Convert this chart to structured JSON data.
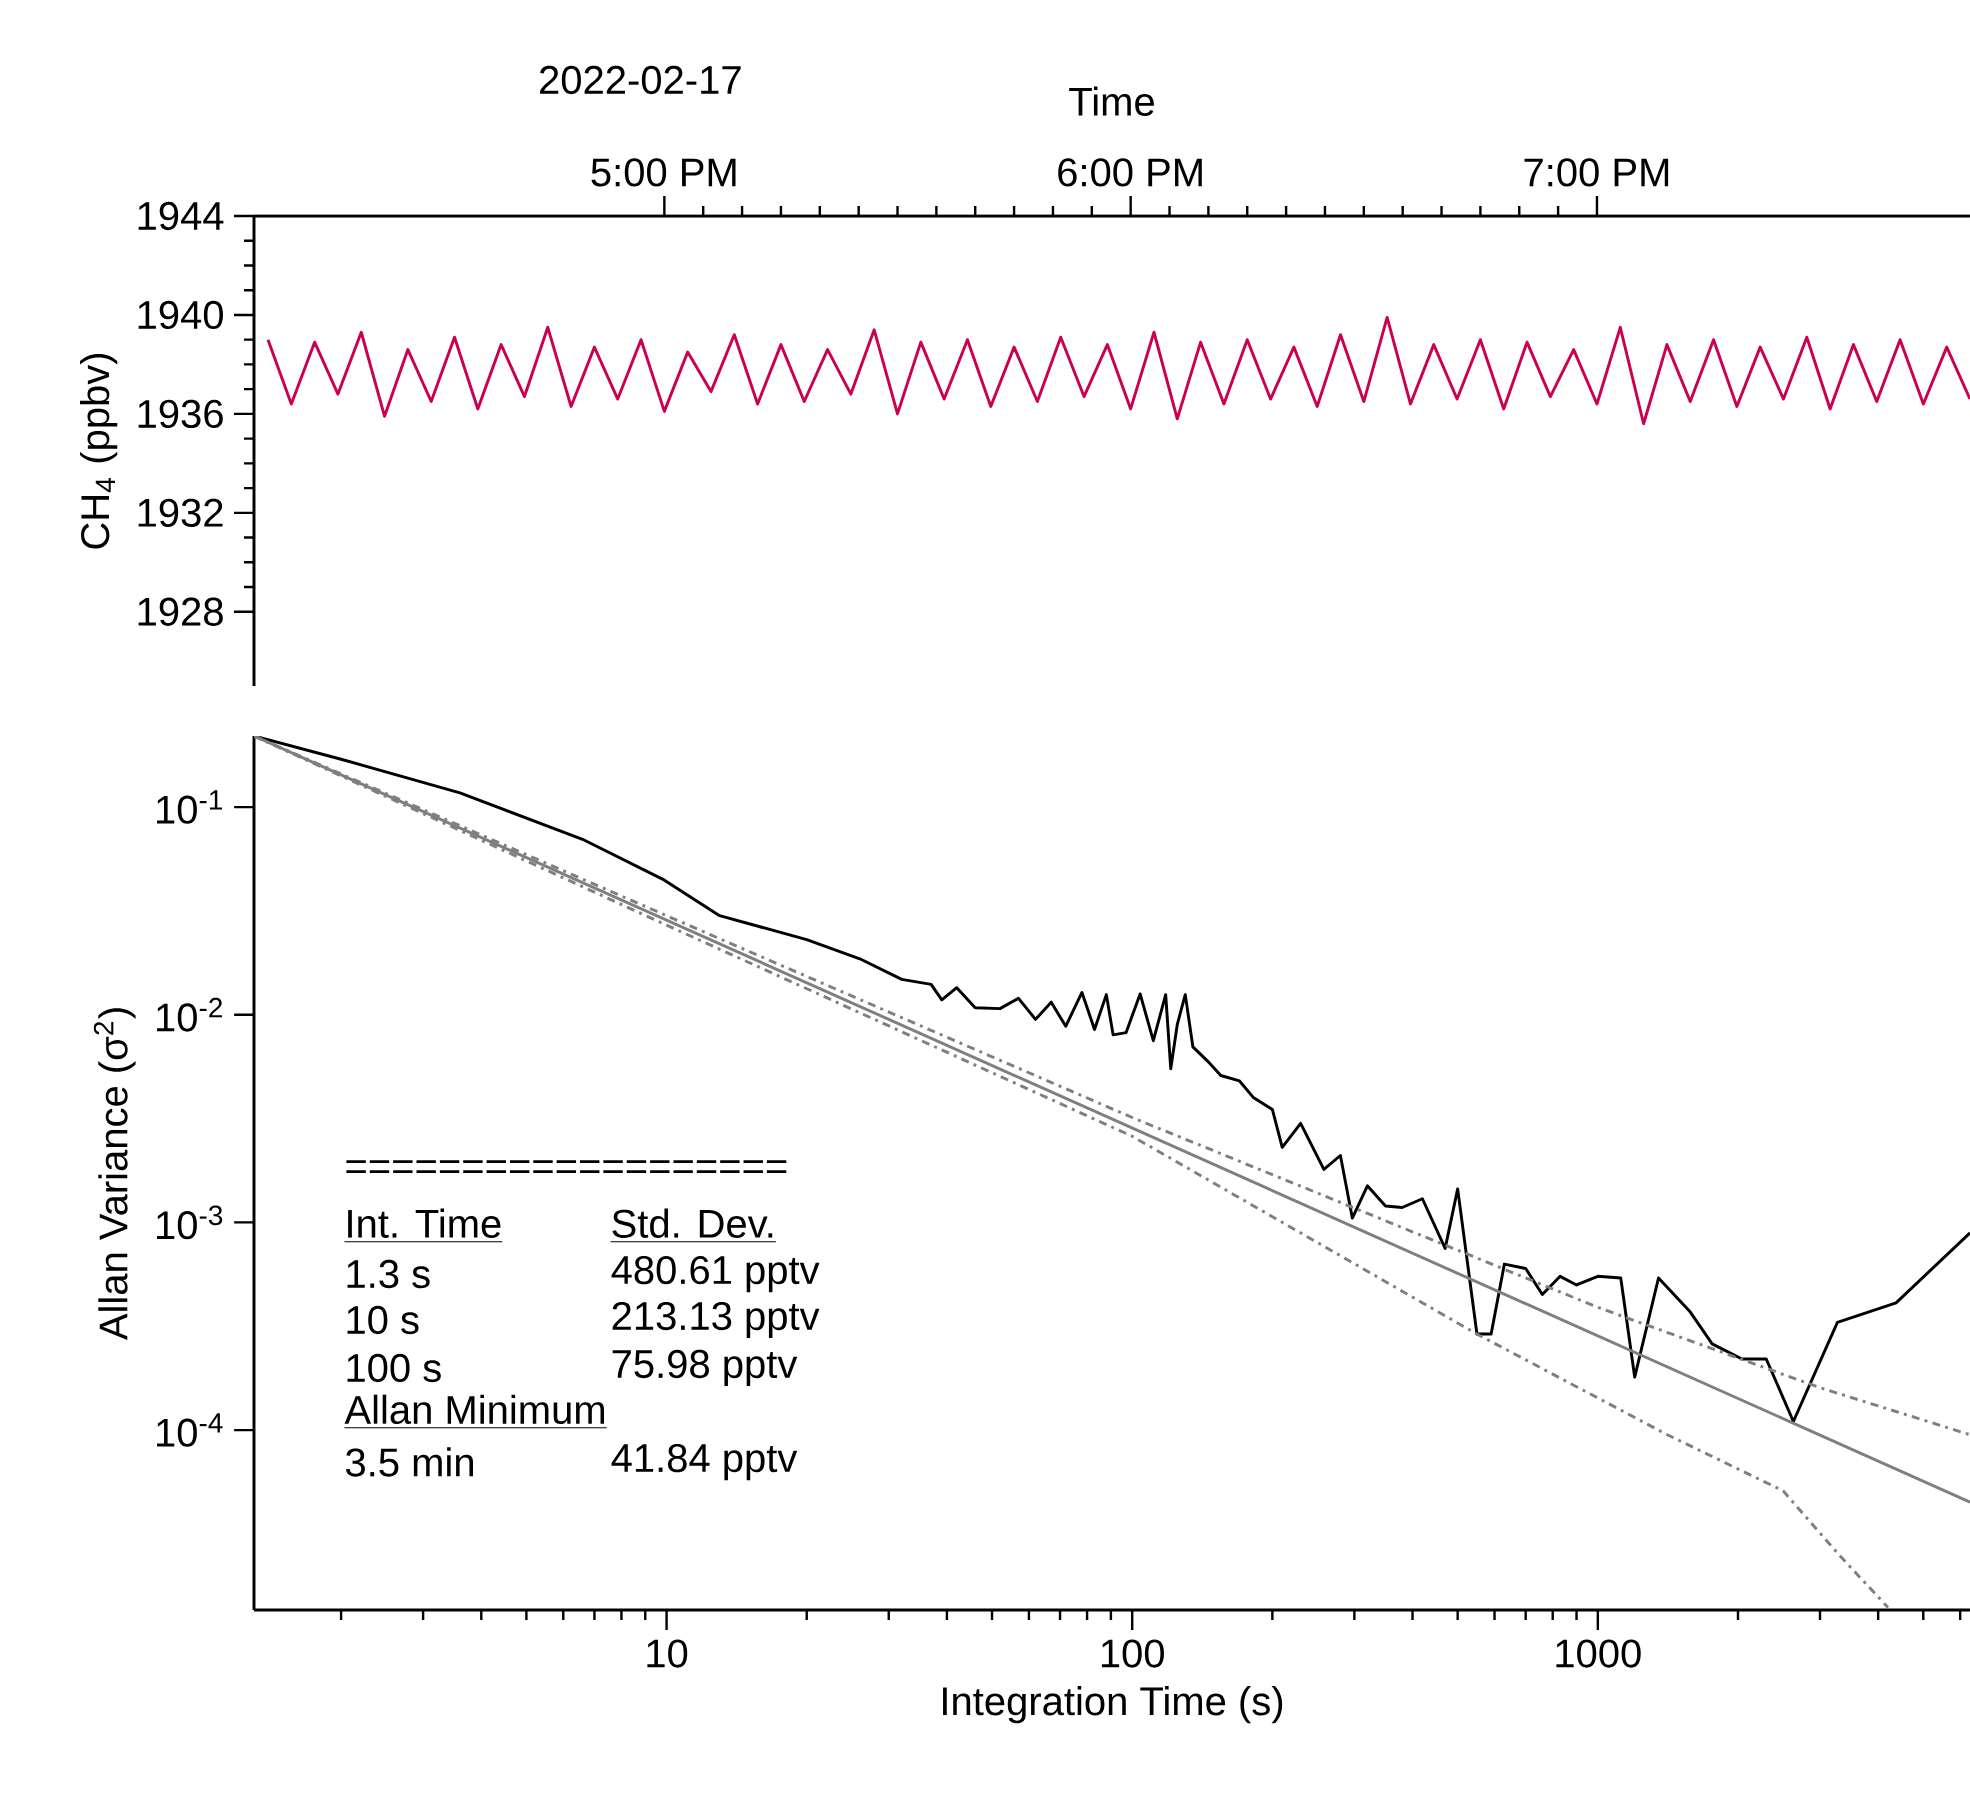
{
  "chart_data": [
    {
      "type": "line",
      "xlabel": "Time",
      "ylabel": "CH$_{4}$ (ppbv)",
      "xlim": [
        16.12,
        19.8
      ],
      "xticks": [
        {
          "value": 17,
          "label": "5:00 PM"
        },
        {
          "value": 18,
          "label": "6:00 PM"
        },
        {
          "value": 19,
          "label": "7:00 PM"
        }
      ],
      "ylim": [
        1925,
        1944
      ],
      "yticks": [
        1928,
        1932,
        1936,
        1940,
        1944
      ],
      "annotations": [
        "2022-02-17"
      ],
      "series": [
        {
          "color": "#cc0052",
          "x": [
            16.15,
            16.2,
            16.25,
            16.3,
            16.35,
            16.4,
            16.45,
            16.5,
            16.55,
            16.6,
            16.65,
            16.7,
            16.75,
            16.8,
            16.85,
            16.9,
            16.95,
            17.0,
            17.05,
            17.1,
            17.15,
            17.2,
            17.25,
            17.3,
            17.35,
            17.4,
            17.45,
            17.5,
            17.55,
            17.6,
            17.65,
            17.7,
            17.75,
            17.8,
            17.85,
            17.9,
            17.95,
            18.0,
            18.05,
            18.1,
            18.15,
            18.2,
            18.25,
            18.3,
            18.35,
            18.4,
            18.45,
            18.5,
            18.55,
            18.6,
            18.65,
            18.7,
            18.75,
            18.8,
            18.85,
            18.9,
            18.95,
            19.0,
            19.05,
            19.1,
            19.15,
            19.2,
            19.25,
            19.3,
            19.35,
            19.4,
            19.45,
            19.5,
            19.55,
            19.6,
            19.65,
            19.7,
            19.75,
            19.8
          ],
          "values": [
            1939.0,
            1936.4,
            1938.9,
            1936.8,
            1939.3,
            1935.9,
            1938.6,
            1936.5,
            1939.1,
            1936.2,
            1938.8,
            1936.7,
            1939.5,
            1936.3,
            1938.7,
            1936.6,
            1939.0,
            1936.1,
            1938.5,
            1936.9,
            1939.2,
            1936.4,
            1938.8,
            1936.5,
            1938.6,
            1936.8,
            1939.4,
            1936.0,
            1938.9,
            1936.6,
            1939.0,
            1936.3,
            1938.7,
            1936.5,
            1939.1,
            1936.7,
            1938.8,
            1936.2,
            1939.3,
            1935.8,
            1938.9,
            1936.4,
            1939.0,
            1936.6,
            1938.7,
            1936.3,
            1939.2,
            1936.5,
            1939.9,
            1936.4,
            1938.8,
            1936.6,
            1939.0,
            1936.2,
            1938.9,
            1936.7,
            1938.6,
            1936.4,
            1939.5,
            1935.6,
            1938.8,
            1936.5,
            1939.0,
            1936.3,
            1938.7,
            1936.6,
            1939.1,
            1936.2,
            1938.8,
            1936.5,
            1939.0,
            1936.4,
            1938.7,
            1936.6
          ]
        }
      ]
    },
    {
      "type": "line",
      "xlabel": "Integration Time (s)",
      "ylabel": "Allan Variance (σ$^{2}$)",
      "log": "xy",
      "xlim": [
        1.3,
        6300
      ],
      "xticks": [
        10,
        100,
        1000
      ],
      "ylim": [
        1.36e-05,
        0.22
      ],
      "yticks": [
        {
          "value": 0.1,
          "label": "10$^{-1}$"
        },
        {
          "value": 0.01,
          "label": "10$^{-2}$"
        },
        {
          "value": 0.001,
          "label": "10$^{-3}$"
        },
        {
          "value": 0.0001,
          "label": "10$^{-4}$"
        }
      ],
      "annotations": [
        "===================",
        "Int. Time",
        "Std. Dev.",
        "1.3 s",
        "480.61 pptv",
        "10 s",
        "213.13 pptv",
        "100 s",
        "75.98 pptv",
        "Allan Minimum",
        "3.5 min",
        "41.84 pptv"
      ],
      "series": [
        {
          "color": "#000000",
          "line_style": "solid",
          "x": [
            1.3,
            2.0,
            3.6,
            6.6,
            9.8,
            13,
            20,
            26,
            32,
            37,
            39,
            42,
            46,
            52,
            57,
            62,
            67,
            72,
            78,
            83,
            88,
            91,
            97,
            104,
            111,
            118,
            121,
            125,
            130,
            135,
            145,
            155,
            170,
            182,
            200,
            210,
            230,
            258,
            280,
            297,
            320,
            350,
            380,
            420,
            470,
            500,
            550,
            590,
            630,
            700,
            760,
            830,
            900,
            1000,
            1120,
            1200,
            1350,
            1580,
            1760,
            2040,
            2300,
            2630,
            3270,
            4370,
            6300
          ],
          "values": [
            0.22,
            0.17,
            0.117,
            0.07,
            0.045,
            0.03,
            0.023,
            0.0186,
            0.0148,
            0.014,
            0.0118,
            0.0135,
            0.0108,
            0.0107,
            0.012,
            0.0095,
            0.0115,
            0.0088,
            0.0128,
            0.0085,
            0.0125,
            0.008,
            0.0082,
            0.0126,
            0.0075,
            0.0125,
            0.0055,
            0.009,
            0.0125,
            0.007,
            0.006,
            0.0051,
            0.0048,
            0.004,
            0.0035,
            0.0023,
            0.003,
            0.0018,
            0.0021,
            0.00105,
            0.0015,
            0.0012,
            0.00118,
            0.0013,
            0.00075,
            0.00145,
            0.00029,
            0.00029,
            0.00063,
            0.0006,
            0.00045,
            0.00055,
            0.0005,
            0.00055,
            0.00054,
            0.00018,
            0.00054,
            0.00037,
            0.00026,
            0.00022,
            0.00022,
            0.00011,
            0.00033,
            0.00041,
            0.00089
          ]
        },
        {
          "color": "#7f7f7f",
          "line_style": "solid",
          "x": [
            1.3,
            6300
          ],
          "values": [
            0.22,
            4.5e-05
          ]
        },
        {
          "color": "#7f7f7f",
          "line_style": "dashdot",
          "x": [
            1.3,
            10,
            100,
            1000,
            3000,
            6300
          ],
          "values": [
            0.22,
            0.03,
            0.0032,
            0.00039,
            0.00016,
            9.5e-05
          ]
        },
        {
          "color": "#7f7f7f",
          "line_style": "dashdot",
          "x": [
            1.3,
            10,
            100,
            550,
            1410,
            2500,
            3300,
            4200
          ],
          "values": [
            0.22,
            0.027,
            0.0026,
            0.00029,
            9.5e-05,
            5.1e-05,
            2.5e-05,
            1.4e-05
          ]
        }
      ]
    }
  ]
}
